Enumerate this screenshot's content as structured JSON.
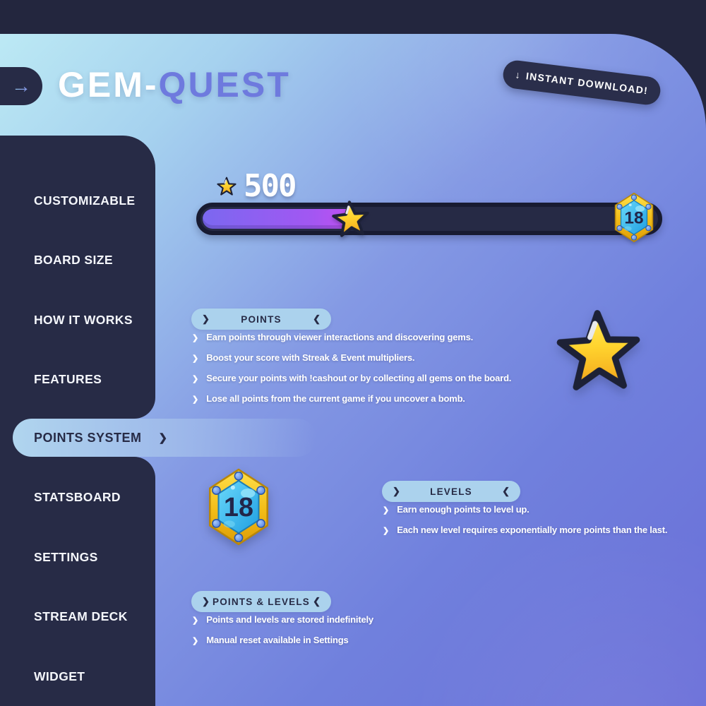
{
  "header": {
    "logo_primary": "GEM-",
    "logo_secondary": "QUEST",
    "download_badge_label": "INSTANT DOWNLOAD!"
  },
  "icons": {
    "back_arrow": "→",
    "download_arrow": "↓",
    "chevron_right": "❯",
    "chevron_left": "❮"
  },
  "sidebar": {
    "items": [
      {
        "label": "CUSTOMIZABLE",
        "active": false
      },
      {
        "label": "BOARD SIZE",
        "active": false
      },
      {
        "label": "HOW IT WORKS",
        "active": false
      },
      {
        "label": "FEATURES",
        "active": false
      },
      {
        "label": "POINTS SYSTEM",
        "active": true
      },
      {
        "label": "STATSBOARD",
        "active": false
      },
      {
        "label": "SETTINGS",
        "active": false
      },
      {
        "label": "STREAM DECK",
        "active": false
      },
      {
        "label": "WIDGET",
        "active": false
      }
    ]
  },
  "progress_widget": {
    "points_value": "500",
    "fill_percent": 34,
    "level_value": "18"
  },
  "sections": {
    "points": {
      "title": "POINTS",
      "bullets": [
        "Earn points through viewer interactions and discovering gems.",
        "Boost your score with Streak & Event multipliers.",
        "Secure your points with !cashout or by collecting all gems on the board.",
        "Lose all points from the current game if you uncover a bomb."
      ]
    },
    "levels": {
      "title": "LEVELS",
      "bullets": [
        "Earn enough points to level up.",
        "Each new level requires exponentially more points than the last."
      ]
    },
    "points_levels": {
      "title": "POINTS & LEVELS",
      "bullets": [
        "Points and levels are stored indefinitely",
        "Manual reset available in Settings"
      ]
    }
  },
  "colors": {
    "navy": "#272b46",
    "panel_gradient_start": "#bce9f4",
    "panel_gradient_end": "#6a6ed8",
    "accent_purple": "#6e7ade",
    "pill_blue": "#abd2ed",
    "progress_fill_start": "#7b68f0",
    "progress_fill_end": "#c44ff2",
    "star_yellow": "#ffd42e",
    "hex_gold": "#f2bc17",
    "hex_cyan": "#2fb4ec"
  }
}
